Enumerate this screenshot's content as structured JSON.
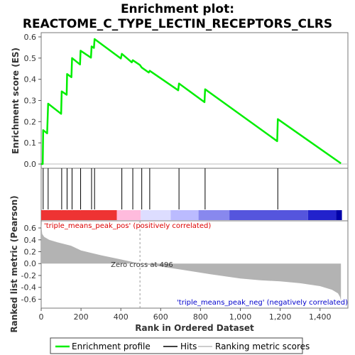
{
  "title_line1": "Enrichment plot:",
  "title_line2": "REACTOME_C_TYPE_LECTIN_RECEPTORS_CLRS",
  "colors": {
    "es_line": "#00ee00",
    "hits": "#000000",
    "metric_fill": "#b3b3b3",
    "pos_text": "#dd0000",
    "neg_text": "#0000cc",
    "zero_line": "#bbbbbb"
  },
  "chart_data": {
    "type": "line",
    "x_label": "Rank in Ordered Dataset",
    "xlim": [
      0,
      1540
    ],
    "x_ticks": [
      0,
      200,
      400,
      600,
      800,
      1000,
      1200,
      1400
    ],
    "es_panel": {
      "ylabel": "Enrichment score (ES)",
      "ylim": [
        -0.02,
        0.62
      ],
      "y_ticks": [
        0.0,
        0.1,
        0.2,
        0.3,
        0.4,
        0.5,
        0.6
      ],
      "series_name": "Enrichment profile",
      "points": [
        [
          0,
          0
        ],
        [
          8,
          0.0
        ],
        [
          10,
          0.16
        ],
        [
          30,
          0.145
        ],
        [
          35,
          0.285
        ],
        [
          100,
          0.237
        ],
        [
          103,
          0.343
        ],
        [
          128,
          0.327
        ],
        [
          130,
          0.425
        ],
        [
          152,
          0.41
        ],
        [
          155,
          0.5
        ],
        [
          195,
          0.47
        ],
        [
          198,
          0.535
        ],
        [
          250,
          0.502
        ],
        [
          253,
          0.555
        ],
        [
          265,
          0.548
        ],
        [
          268,
          0.59
        ],
        [
          400,
          0.498
        ],
        [
          405,
          0.52
        ],
        [
          455,
          0.48
        ],
        [
          460,
          0.49
        ],
        [
          495,
          0.468
        ],
        [
          505,
          0.455
        ],
        [
          540,
          0.432
        ],
        [
          545,
          0.44
        ],
        [
          688,
          0.348
        ],
        [
          692,
          0.38
        ],
        [
          820,
          0.292
        ],
        [
          823,
          0.353
        ],
        [
          1185,
          0.108
        ],
        [
          1188,
          0.212
        ],
        [
          1505,
          0.003
        ]
      ]
    },
    "hits": [
      10,
      35,
      103,
      130,
      155,
      198,
      253,
      268,
      405,
      460,
      505,
      545,
      692,
      823,
      1188
    ],
    "metric_panel": {
      "ylabel": "Ranked list metric (Pearson)",
      "ylim": [
        -0.75,
        0.72
      ],
      "y_ticks": [
        0.6,
        0.4,
        0.2,
        0.0,
        -0.2,
        -0.4,
        -0.6
      ],
      "series_name": "Ranking metric scores",
      "points": [
        [
          0,
          0.67
        ],
        [
          5,
          0.5
        ],
        [
          15,
          0.45
        ],
        [
          40,
          0.4
        ],
        [
          80,
          0.36
        ],
        [
          150,
          0.3
        ],
        [
          200,
          0.22
        ],
        [
          300,
          0.14
        ],
        [
          400,
          0.07
        ],
        [
          496,
          0.0
        ],
        [
          600,
          -0.05
        ],
        [
          700,
          -0.1
        ],
        [
          850,
          -0.18
        ],
        [
          1000,
          -0.25
        ],
        [
          1100,
          -0.28
        ],
        [
          1200,
          -0.3
        ],
        [
          1300,
          -0.33
        ],
        [
          1400,
          -0.38
        ],
        [
          1460,
          -0.44
        ],
        [
          1490,
          -0.5
        ],
        [
          1500,
          -0.56
        ],
        [
          1505,
          -0.62
        ]
      ],
      "zero_cross_label": "Zero cross at 496",
      "zero_cross": 496,
      "pos_label": "'triple_means_peak_pos' (positively correlated)",
      "neg_label": "'triple_means_peak_neg' (negatively correlated)"
    },
    "colorbar": [
      {
        "from": 0,
        "to": 380,
        "color": "#ee3333"
      },
      {
        "from": 380,
        "to": 500,
        "color": "#ffbbdd"
      },
      {
        "from": 500,
        "to": 650,
        "color": "#ddddff"
      },
      {
        "from": 650,
        "to": 790,
        "color": "#bbbbff"
      },
      {
        "from": 790,
        "to": 945,
        "color": "#8888ee"
      },
      {
        "from": 945,
        "to": 1340,
        "color": "#5555dd"
      },
      {
        "from": 1340,
        "to": 1480,
        "color": "#2222cc"
      },
      {
        "from": 1480,
        "to": 1510,
        "color": "#0000aa"
      }
    ],
    "legend": [
      "Enrichment profile",
      "Hits",
      "Ranking metric scores"
    ]
  }
}
